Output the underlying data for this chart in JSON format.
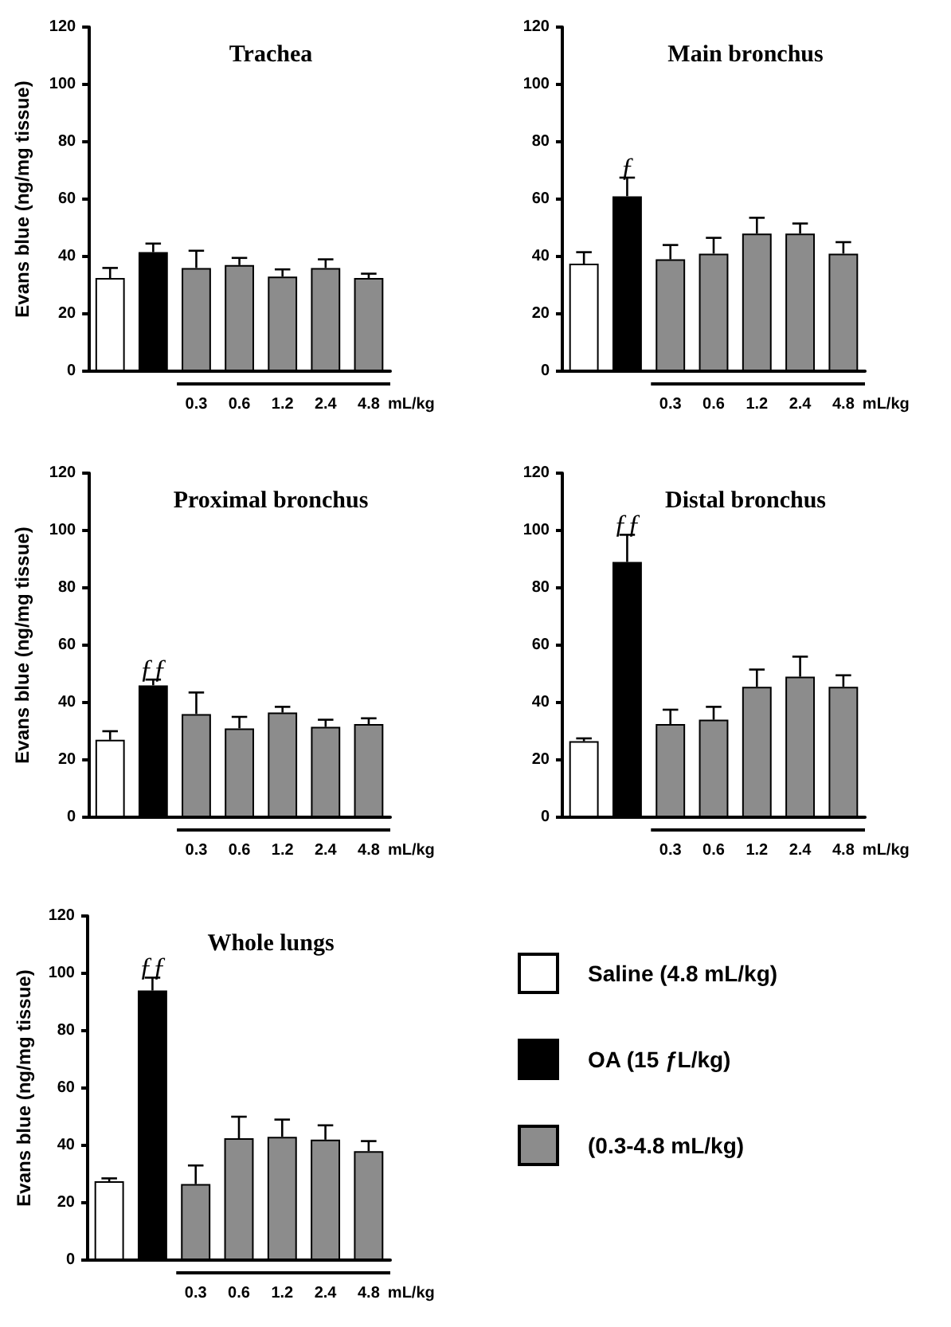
{
  "chart_data": [
    {
      "type": "bar",
      "title": "Trachea",
      "ylabel": "Evans blue (ng/mg tissue)",
      "categories": [
        null,
        null,
        "0.3",
        "0.6",
        "1.2",
        "2.4",
        "4.8"
      ],
      "ylim": [
        0,
        120
      ],
      "yticks": [
        0,
        20,
        40,
        60,
        80,
        100,
        120
      ],
      "annotations": [
        "mL/kg"
      ],
      "series": [
        {
          "color": "#ffffff",
          "values": [
            32.5,
            null,
            null,
            null,
            null,
            null,
            null
          ],
          "errors": [
            3.5,
            null,
            null,
            null,
            null,
            null,
            null
          ]
        },
        {
          "color": "#000000",
          "values": [
            null,
            41.5,
            null,
            null,
            null,
            null,
            null
          ],
          "errors": [
            null,
            3,
            null,
            null,
            null,
            null,
            null
          ]
        },
        {
          "color": "#8c8c8c",
          "values": [
            null,
            null,
            36,
            37,
            33,
            36,
            32.5
          ],
          "errors": [
            null,
            null,
            6,
            2.5,
            2.5,
            3,
            1.5
          ]
        }
      ]
    },
    {
      "type": "bar",
      "title": "Main bronchus",
      "categories": [
        null,
        null,
        "0.3",
        "0.6",
        "1.2",
        "2.4",
        "4.8"
      ],
      "ylim": [
        0,
        120
      ],
      "yticks": [
        0,
        20,
        40,
        60,
        80,
        100,
        120
      ],
      "annotations": [
        "mL/kg",
        "ƒ"
      ],
      "series": [
        {
          "color": "#ffffff",
          "values": [
            37.5,
            null,
            null,
            null,
            null,
            null,
            null
          ],
          "errors": [
            4,
            null,
            null,
            null,
            null,
            null,
            null
          ]
        },
        {
          "color": "#000000",
          "values": [
            null,
            61,
            null,
            null,
            null,
            null,
            null
          ],
          "errors": [
            null,
            6.5,
            null,
            null,
            null,
            null,
            null
          ]
        },
        {
          "color": "#8c8c8c",
          "values": [
            null,
            null,
            39,
            41,
            48,
            48,
            41
          ],
          "errors": [
            null,
            null,
            5,
            5.5,
            5.5,
            3.5,
            4
          ]
        }
      ]
    },
    {
      "type": "bar",
      "title": "Proximal bronchus",
      "ylabel": "Evans blue (ng/mg tissue)",
      "categories": [
        null,
        null,
        "0.3",
        "0.6",
        "1.2",
        "2.4",
        "4.8"
      ],
      "ylim": [
        0,
        120
      ],
      "yticks": [
        0,
        20,
        40,
        60,
        80,
        100,
        120
      ],
      "annotations": [
        "mL/kg",
        "ƒƒ"
      ],
      "series": [
        {
          "color": "#ffffff",
          "values": [
            27,
            null,
            null,
            null,
            null,
            null,
            null
          ],
          "errors": [
            3,
            null,
            null,
            null,
            null,
            null,
            null
          ]
        },
        {
          "color": "#000000",
          "values": [
            null,
            46,
            null,
            null,
            null,
            null,
            null
          ],
          "errors": [
            null,
            2,
            null,
            null,
            null,
            null,
            null
          ]
        },
        {
          "color": "#8c8c8c",
          "values": [
            null,
            null,
            36,
            31,
            36.5,
            31.5,
            32.5
          ],
          "errors": [
            null,
            null,
            7.5,
            4,
            2,
            2.5,
            2
          ]
        }
      ]
    },
    {
      "type": "bar",
      "title": "Distal bronchus",
      "categories": [
        null,
        null,
        "0.3",
        "0.6",
        "1.2",
        "2.4",
        "4.8"
      ],
      "ylim": [
        0,
        120
      ],
      "yticks": [
        0,
        20,
        40,
        60,
        80,
        100,
        120
      ],
      "annotations": [
        "mL/kg",
        "ƒƒ"
      ],
      "series": [
        {
          "color": "#ffffff",
          "values": [
            26.5,
            null,
            null,
            null,
            null,
            null,
            null
          ],
          "errors": [
            1,
            null,
            null,
            null,
            null,
            null,
            null
          ]
        },
        {
          "color": "#000000",
          "values": [
            null,
            89,
            null,
            null,
            null,
            null,
            null
          ],
          "errors": [
            null,
            9.5,
            null,
            null,
            null,
            null,
            null
          ]
        },
        {
          "color": "#8c8c8c",
          "values": [
            null,
            null,
            32.5,
            34,
            45.5,
            49,
            45.5
          ],
          "errors": [
            null,
            null,
            5,
            4.5,
            6,
            7,
            4
          ]
        }
      ]
    },
    {
      "type": "bar",
      "title": "Whole lungs",
      "ylabel": "Evans blue (ng/mg tissue)",
      "categories": [
        null,
        null,
        "0.3",
        "0.6",
        "1.2",
        "2.4",
        "4.8"
      ],
      "ylim": [
        0,
        120
      ],
      "yticks": [
        0,
        20,
        40,
        60,
        80,
        100,
        120
      ],
      "annotations": [
        "mL/kg",
        "ƒƒ"
      ],
      "legend": "right",
      "series": [
        {
          "name": "Saline (4.8 mL/kg)",
          "color": "#ffffff",
          "values": [
            27.5,
            null,
            null,
            null,
            null,
            null,
            null
          ],
          "errors": [
            1,
            null,
            null,
            null,
            null,
            null,
            null
          ]
        },
        {
          "name": "OA (15 ƒL/kg)",
          "color": "#000000",
          "values": [
            null,
            94,
            null,
            null,
            null,
            null,
            null
          ],
          "errors": [
            null,
            4.5,
            null,
            null,
            null,
            null,
            null
          ]
        },
        {
          "name": "(0.3-4.8 mL/kg)",
          "color": "#8c8c8c",
          "values": [
            null,
            null,
            26.5,
            42.5,
            43,
            42,
            38
          ],
          "errors": [
            null,
            null,
            6.5,
            7.5,
            6,
            5,
            3.5
          ]
        }
      ]
    }
  ]
}
